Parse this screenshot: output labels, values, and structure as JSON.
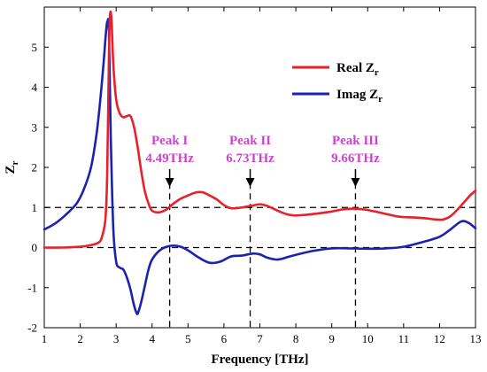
{
  "chart_data": {
    "type": "line",
    "title": "",
    "xlabel": "Frequency [THz]",
    "ylabel": "Z",
    "ylabel_subscript": "r",
    "xlim": [
      1,
      13
    ],
    "ylim": [
      -2,
      6
    ],
    "xticks": [
      "1",
      "2",
      "3",
      "4",
      "5",
      "6",
      "7",
      "8",
      "9",
      "10",
      "11",
      "12",
      "13"
    ],
    "yticks": [
      "-2",
      "-1",
      "0",
      "1",
      "2",
      "3",
      "4",
      "5"
    ],
    "legend_position": "top-right",
    "series": [
      {
        "name": "Real Z",
        "name_subscript": "r",
        "color": "#e8202a",
        "x": [
          1.0,
          1.5,
          2.0,
          2.3,
          2.5,
          2.6,
          2.7,
          2.75,
          2.8,
          2.83,
          2.87,
          2.92,
          3.0,
          3.1,
          3.2,
          3.3,
          3.4,
          3.5,
          3.6,
          3.7,
          3.8,
          3.9,
          4.0,
          4.2,
          4.4,
          4.6,
          4.8,
          5.0,
          5.2,
          5.4,
          5.6,
          5.8,
          6.0,
          6.2,
          6.5,
          6.8,
          7.0,
          7.2,
          7.4,
          7.6,
          7.8,
          8.0,
          8.3,
          8.6,
          9.0,
          9.3,
          9.6,
          9.9,
          10.2,
          10.5,
          10.8,
          11.0,
          11.3,
          11.6,
          11.9,
          12.1,
          12.3,
          12.5,
          12.7,
          12.85,
          13.0
        ],
        "y": [
          0.0,
          0.0,
          0.02,
          0.06,
          0.12,
          0.25,
          0.7,
          1.8,
          4.8,
          5.8,
          5.7,
          4.6,
          3.7,
          3.35,
          3.25,
          3.28,
          3.28,
          3.0,
          2.5,
          1.9,
          1.4,
          1.1,
          0.92,
          0.88,
          0.95,
          1.1,
          1.22,
          1.3,
          1.37,
          1.38,
          1.3,
          1.2,
          1.06,
          0.98,
          1.0,
          1.05,
          1.08,
          1.04,
          0.96,
          0.88,
          0.82,
          0.8,
          0.82,
          0.85,
          0.9,
          0.95,
          0.97,
          0.95,
          0.9,
          0.84,
          0.78,
          0.76,
          0.75,
          0.73,
          0.7,
          0.7,
          0.78,
          0.95,
          1.15,
          1.3,
          1.42
        ]
      },
      {
        "name": "Imag Z",
        "name_subscript": "r",
        "color": "#1a22b0",
        "x": [
          1.0,
          1.3,
          1.6,
          1.9,
          2.1,
          2.3,
          2.45,
          2.55,
          2.65,
          2.72,
          2.76,
          2.8,
          2.85,
          2.92,
          3.0,
          3.1,
          3.2,
          3.3,
          3.4,
          3.5,
          3.58,
          3.62,
          3.7,
          3.8,
          3.9,
          4.0,
          4.2,
          4.4,
          4.6,
          4.8,
          5.0,
          5.3,
          5.6,
          5.9,
          6.2,
          6.5,
          6.8,
          7.0,
          7.2,
          7.5,
          7.8,
          8.1,
          8.5,
          9.0,
          9.5,
          10.0,
          10.5,
          11.0,
          11.5,
          12.0,
          12.3,
          12.6,
          12.8,
          13.0
        ],
        "y": [
          0.45,
          0.6,
          0.82,
          1.1,
          1.45,
          2.0,
          2.8,
          3.6,
          4.6,
          5.4,
          5.65,
          5.4,
          2.8,
          0.5,
          -0.35,
          -0.5,
          -0.55,
          -0.75,
          -1.05,
          -1.45,
          -1.65,
          -1.6,
          -1.35,
          -0.95,
          -0.55,
          -0.3,
          -0.08,
          0.02,
          0.05,
          0.02,
          -0.07,
          -0.25,
          -0.38,
          -0.35,
          -0.22,
          -0.2,
          -0.15,
          -0.17,
          -0.25,
          -0.3,
          -0.23,
          -0.16,
          -0.08,
          -0.02,
          -0.02,
          -0.03,
          -0.02,
          0.02,
          0.13,
          0.27,
          0.45,
          0.65,
          0.62,
          0.48
        ]
      }
    ],
    "h_lines": [
      {
        "y": 1,
        "style": "dashed"
      },
      {
        "y": 0,
        "style": "dashed"
      }
    ],
    "annotations": [
      {
        "line1": "Peak I",
        "line2": "4.49THz",
        "x": 4.49,
        "color": "#cc44cc"
      },
      {
        "line1": "Peak II",
        "line2": "6.73THz",
        "x": 6.73,
        "color": "#cc44cc"
      },
      {
        "line1": "Peak III",
        "line2": "9.66THz",
        "x": 9.66,
        "color": "#cc44cc"
      }
    ]
  }
}
